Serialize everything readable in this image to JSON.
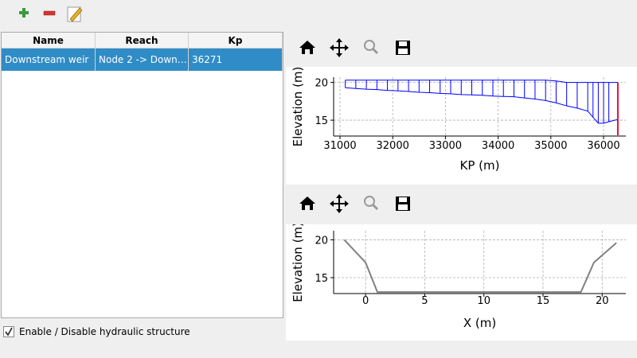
{
  "table": {
    "columns": [
      "Name",
      "Reach",
      "Kp"
    ],
    "rows": [
      [
        "Downstream weir",
        "Node 2 -> Down…",
        "36271"
      ]
    ]
  },
  "checkbox": {
    "label": "Enable / Disable hydraulic structure",
    "checked": true
  },
  "chart_data": [
    {
      "type": "profile",
      "xlabel": "KP (m)",
      "ylabel": "Elevation (m)",
      "x": [
        31100,
        31300,
        31500,
        31700,
        31900,
        32100,
        32300,
        32500,
        32700,
        32900,
        33100,
        33300,
        33500,
        33700,
        33900,
        34100,
        34300,
        34500,
        34700,
        34900,
        35100,
        35300,
        35500,
        35700,
        35800,
        35900,
        36000,
        36100,
        36271
      ],
      "series": [
        {
          "color": "#0000ff",
          "values": [
            19.3,
            19.2,
            19.1,
            19.05,
            18.95,
            18.9,
            18.8,
            18.7,
            18.65,
            18.55,
            18.5,
            18.4,
            18.35,
            18.3,
            18.2,
            18.15,
            18.1,
            17.95,
            17.8,
            17.6,
            17.3,
            16.9,
            16.6,
            16.2,
            15.4,
            14.6,
            14.6,
            14.8,
            15.1
          ]
        },
        {
          "color": "#0000ff",
          "values": [
            20.3,
            20.3,
            20.3,
            20.3,
            20.3,
            20.3,
            20.3,
            20.3,
            20.3,
            20.3,
            20.3,
            20.3,
            20.3,
            20.3,
            20.3,
            20.3,
            20.3,
            20.3,
            20.3,
            20.3,
            20.2,
            20.0,
            20.0,
            20.0,
            20.0,
            20.0,
            20.0,
            20.0,
            20.0
          ]
        }
      ],
      "marker": {
        "x": 36271,
        "values": [
          13,
          20
        ],
        "color": "#dc143c"
      },
      "xlim": [
        30879,
        36423
      ],
      "ylim": [
        12.9,
        20.7
      ],
      "xticks": [
        31000,
        32000,
        33000,
        34000,
        35000,
        36000
      ],
      "yticks": [
        15,
        20
      ],
      "grid": true
    },
    {
      "type": "line",
      "xlabel": "X (m)",
      "ylabel": "Elevation (m)",
      "x": [
        -1.8,
        0,
        1,
        18.2,
        19.3,
        21.2
      ],
      "series": [
        {
          "color": "#808080",
          "values": [
            20,
            17,
            13.1,
            13.1,
            17,
            19.6
          ]
        }
      ],
      "xlim": [
        -2.7,
        22.0
      ],
      "ylim": [
        12.9,
        21.2
      ],
      "xticks": [
        0,
        5,
        10,
        15,
        20
      ],
      "yticks": [
        15,
        20
      ],
      "grid": true
    }
  ]
}
